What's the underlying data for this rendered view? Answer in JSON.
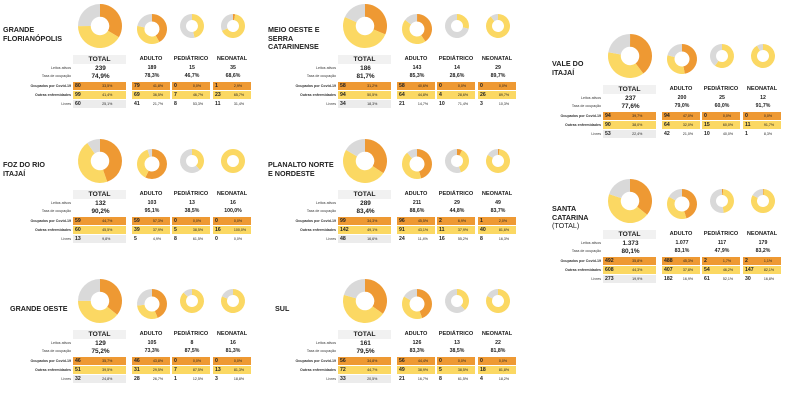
{
  "colors": {
    "covid": "#ee9933",
    "other": "#fbd863",
    "free": "#d9d9d9"
  },
  "labels": {
    "total": "TOTAL",
    "adulto": "ADULTO",
    "pediatrico": "PEDIÁTRICO",
    "neonatal": "NEONATAL",
    "leitos": "Leitos ativos",
    "taxa": "Taxa de ocupação",
    "covid": "Ocupados por Covid-19",
    "outras": "Outras enfermidades",
    "livres": "Livres"
  },
  "regions": [
    {
      "name": "GRANDE FLORIANÓPOLIS",
      "sub": "",
      "total": {
        "leitos": "239",
        "taxa": "74,9%",
        "covid": "80",
        "covid_pct": "33,5%",
        "outras": "99",
        "outras_pct": "41,4%",
        "livres": "60",
        "livres_pct": "25,1%",
        "frac": [
          0.335,
          0.414,
          0.251
        ]
      },
      "adulto": {
        "leitos": "189",
        "taxa": "78,3%",
        "covid": "79",
        "covid_pct": "41,8%",
        "outras": "69",
        "outras_pct": "36,5%",
        "livres": "41",
        "livres_pct": "21,7%",
        "frac": [
          0.418,
          0.365,
          0.217
        ]
      },
      "ped": {
        "leitos": "15",
        "taxa": "46,7%",
        "covid": "0",
        "covid_pct": "0,0%",
        "outras": "7",
        "outras_pct": "46,7%",
        "livres": "8",
        "livres_pct": "53,3%",
        "frac": [
          0,
          0.467,
          0.533
        ]
      },
      "neo": {
        "leitos": "35",
        "taxa": "68,6%",
        "covid": "1",
        "covid_pct": "2,9%",
        "outras": "23",
        "outras_pct": "65,7%",
        "livres": "11",
        "livres_pct": "31,4%",
        "frac": [
          0.029,
          0.657,
          0.314
        ]
      }
    },
    {
      "name": "MEIO OESTE E SERRA CATARINENSE",
      "sub": "",
      "total": {
        "leitos": "186",
        "taxa": "81,7%",
        "covid": "58",
        "covid_pct": "31,2%",
        "outras": "94",
        "outras_pct": "50,5%",
        "livres": "34",
        "livres_pct": "18,3%",
        "frac": [
          0.312,
          0.505,
          0.183
        ]
      },
      "adulto": {
        "leitos": "143",
        "taxa": "85,3%",
        "covid": "58",
        "covid_pct": "40,6%",
        "outras": "64",
        "outras_pct": "44,8%",
        "livres": "21",
        "livres_pct": "14,7%",
        "frac": [
          0.406,
          0.448,
          0.147
        ]
      },
      "ped": {
        "leitos": "14",
        "taxa": "28,6%",
        "covid": "0",
        "covid_pct": "0,0%",
        "outras": "4",
        "outras_pct": "28,6%",
        "livres": "10",
        "livres_pct": "71,4%",
        "frac": [
          0,
          0.286,
          0.714
        ]
      },
      "neo": {
        "leitos": "29",
        "taxa": "89,7%",
        "covid": "0",
        "covid_pct": "0,0%",
        "outras": "26",
        "outras_pct": "89,7%",
        "livres": "3",
        "livres_pct": "10,3%",
        "frac": [
          0,
          0.897,
          0.103
        ]
      }
    },
    {
      "name": "VALE DO ITAJAÍ",
      "sub": "",
      "total": {
        "leitos": "237",
        "taxa": "77,6%",
        "covid": "94",
        "covid_pct": "39,7%",
        "outras": "90",
        "outras_pct": "38,0%",
        "livres": "53",
        "livres_pct": "22,4%",
        "frac": [
          0.397,
          0.38,
          0.224
        ]
      },
      "adulto": {
        "leitos": "200",
        "taxa": "79,0%",
        "covid": "94",
        "covid_pct": "47,0%",
        "outras": "64",
        "outras_pct": "32,0%",
        "livres": "42",
        "livres_pct": "21,0%",
        "frac": [
          0.47,
          0.32,
          0.21
        ]
      },
      "ped": {
        "leitos": "25",
        "taxa": "60,0%",
        "covid": "0",
        "covid_pct": "0,0%",
        "outras": "15",
        "outras_pct": "60,0%",
        "livres": "10",
        "livres_pct": "40,0%",
        "frac": [
          0,
          0.6,
          0.4
        ]
      },
      "neo": {
        "leitos": "12",
        "taxa": "91,7%",
        "covid": "0",
        "covid_pct": "0,0%",
        "outras": "11",
        "outras_pct": "91,7%",
        "livres": "1",
        "livres_pct": "8,3%",
        "frac": [
          0,
          0.917,
          0.083
        ]
      }
    },
    {
      "name": "FOZ DO RIO ITAJAÍ",
      "sub": "",
      "total": {
        "leitos": "132",
        "taxa": "90,2%",
        "covid": "59",
        "covid_pct": "44,7%",
        "outras": "60",
        "outras_pct": "45,5%",
        "livres": "13",
        "livres_pct": "9,8%",
        "frac": [
          0.447,
          0.455,
          0.098
        ]
      },
      "adulto": {
        "leitos": "103",
        "taxa": "95,1%",
        "covid": "59",
        "covid_pct": "57,3%",
        "outras": "39",
        "outras_pct": "37,9%",
        "livres": "5",
        "livres_pct": "4,9%",
        "frac": [
          0.573,
          0.379,
          0.049
        ]
      },
      "ped": {
        "leitos": "13",
        "taxa": "38,5%",
        "covid": "0",
        "covid_pct": "0,0%",
        "outras": "5",
        "outras_pct": "38,5%",
        "livres": "8",
        "livres_pct": "61,5%",
        "frac": [
          0,
          0.385,
          0.615
        ]
      },
      "neo": {
        "leitos": "16",
        "taxa": "100,0%",
        "covid": "0",
        "covid_pct": "0,0%",
        "outras": "16",
        "outras_pct": "100,0%",
        "livres": "0",
        "livres_pct": "0,0%",
        "frac": [
          0,
          1,
          0
        ]
      }
    },
    {
      "name": "PLANALTO NORTE E NORDESTE",
      "sub": "",
      "total": {
        "leitos": "289",
        "taxa": "83,4%",
        "covid": "99",
        "covid_pct": "34,3%",
        "outras": "142",
        "outras_pct": "49,1%",
        "livres": "48",
        "livres_pct": "16,6%",
        "frac": [
          0.343,
          0.491,
          0.166
        ]
      },
      "adulto": {
        "leitos": "211",
        "taxa": "88,6%",
        "covid": "96",
        "covid_pct": "45,5%",
        "outras": "91",
        "outras_pct": "43,1%",
        "livres": "24",
        "livres_pct": "11,4%",
        "frac": [
          0.455,
          0.431,
          0.114
        ]
      },
      "ped": {
        "leitos": "29",
        "taxa": "44,8%",
        "covid": "2",
        "covid_pct": "6,9%",
        "outras": "11",
        "outras_pct": "37,9%",
        "livres": "16",
        "livres_pct": "55,2%",
        "frac": [
          0.069,
          0.379,
          0.552
        ]
      },
      "neo": {
        "leitos": "49",
        "taxa": "83,7%",
        "covid": "1",
        "covid_pct": "2,0%",
        "outras": "40",
        "outras_pct": "81,6%",
        "livres": "8",
        "livres_pct": "16,3%",
        "frac": [
          0.02,
          0.816,
          0.163
        ]
      }
    },
    {
      "name": "SANTA CATARINA",
      "sub": "(TOTAL)",
      "total": {
        "leitos": "1.373",
        "taxa": "80,1%",
        "covid": "492",
        "covid_pct": "35,8%",
        "outras": "608",
        "outras_pct": "44,3%",
        "livres": "273",
        "livres_pct": "19,9%",
        "frac": [
          0.358,
          0.443,
          0.199
        ]
      },
      "adulto": {
        "leitos": "1.077",
        "taxa": "83,1%",
        "covid": "488",
        "covid_pct": "45,3%",
        "outras": "407",
        "outras_pct": "37,8%",
        "livres": "182",
        "livres_pct": "16,9%",
        "frac": [
          0.453,
          0.378,
          0.169
        ]
      },
      "ped": {
        "leitos": "117",
        "taxa": "47,9%",
        "covid": "2",
        "covid_pct": "1,7%",
        "outras": "54",
        "outras_pct": "46,2%",
        "livres": "61",
        "livres_pct": "52,1%",
        "frac": [
          0.017,
          0.462,
          0.521
        ]
      },
      "neo": {
        "leitos": "179",
        "taxa": "83,2%",
        "covid": "2",
        "covid_pct": "1,1%",
        "outras": "147",
        "outras_pct": "82,1%",
        "livres": "30",
        "livres_pct": "16,8%",
        "frac": [
          0.011,
          0.821,
          0.168
        ]
      }
    },
    {
      "name": "GRANDE OESTE",
      "sub": "",
      "total": {
        "leitos": "129",
        "taxa": "75,2%",
        "covid": "46",
        "covid_pct": "35,7%",
        "outras": "51",
        "outras_pct": "39,5%",
        "livres": "32",
        "livres_pct": "24,8%",
        "frac": [
          0.357,
          0.395,
          0.248
        ]
      },
      "adulto": {
        "leitos": "105",
        "taxa": "73,3%",
        "covid": "46",
        "covid_pct": "43,8%",
        "outras": "31",
        "outras_pct": "29,5%",
        "livres": "28",
        "livres_pct": "26,7%",
        "frac": [
          0.438,
          0.295,
          0.267
        ]
      },
      "ped": {
        "leitos": "8",
        "taxa": "87,5%",
        "covid": "0",
        "covid_pct": "0,0%",
        "outras": "7",
        "outras_pct": "87,5%",
        "livres": "1",
        "livres_pct": "12,5%",
        "frac": [
          0,
          0.875,
          0.125
        ]
      },
      "neo": {
        "leitos": "16",
        "taxa": "81,3%",
        "covid": "0",
        "covid_pct": "0,0%",
        "outras": "13",
        "outras_pct": "81,3%",
        "livres": "3",
        "livres_pct": "18,8%",
        "frac": [
          0,
          0.813,
          0.188
        ]
      }
    },
    {
      "name": "SUL",
      "sub": "",
      "total": {
        "leitos": "161",
        "taxa": "79,5%",
        "covid": "56",
        "covid_pct": "34,8%",
        "outras": "72",
        "outras_pct": "44,7%",
        "livres": "33",
        "livres_pct": "20,5%",
        "frac": [
          0.348,
          0.447,
          0.205
        ]
      },
      "adulto": {
        "leitos": "126",
        "taxa": "83,3%",
        "covid": "56",
        "covid_pct": "44,4%",
        "outras": "49",
        "outras_pct": "38,9%",
        "livres": "21",
        "livres_pct": "16,7%",
        "frac": [
          0.444,
          0.389,
          0.167
        ]
      },
      "ped": {
        "leitos": "13",
        "taxa": "38,5%",
        "covid": "0",
        "covid_pct": "0,0%",
        "outras": "5",
        "outras_pct": "38,5%",
        "livres": "8",
        "livres_pct": "61,5%",
        "frac": [
          0,
          0.385,
          0.615
        ]
      },
      "neo": {
        "leitos": "22",
        "taxa": "81,8%",
        "covid": "0",
        "covid_pct": "0,0%",
        "outras": "18",
        "outras_pct": "81,8%",
        "livres": "4",
        "livres_pct": "18,2%",
        "frac": [
          0,
          0.818,
          0.182
        ]
      }
    }
  ]
}
